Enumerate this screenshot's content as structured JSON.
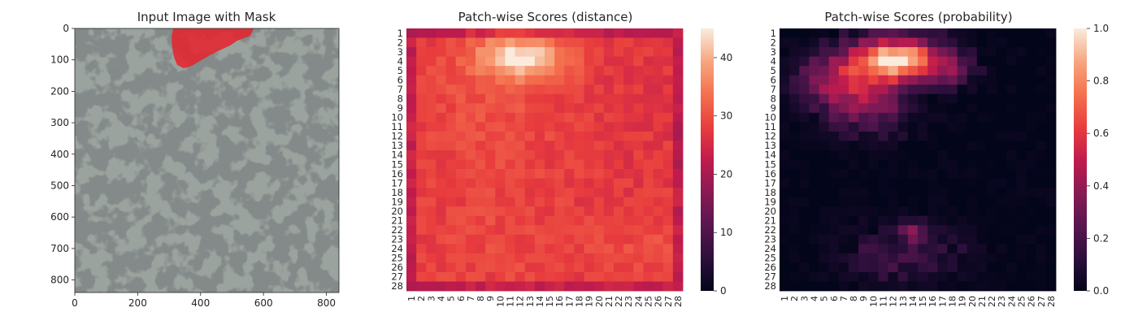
{
  "chart_data": [
    {
      "type": "image",
      "title": "Input Image with Mask",
      "xlim": [
        0,
        840
      ],
      "ylim": [
        840,
        0
      ],
      "xticks": [
        "0",
        "200",
        "400",
        "600",
        "800"
      ],
      "yticks": [
        "0",
        "100",
        "200",
        "300",
        "400",
        "500",
        "600",
        "700",
        "800"
      ],
      "mask_region": "red overlay at top center of image",
      "colors": {
        "background": "#9aa39e",
        "spots": "#3c4140",
        "mask": "#e8222c"
      }
    },
    {
      "type": "heatmap",
      "title": "Patch-wise Scores (distance)",
      "rows": 28,
      "cols": 28,
      "tick_labels": [
        "1",
        "2",
        "3",
        "4",
        "5",
        "6",
        "7",
        "8",
        "9",
        "10",
        "11",
        "12",
        "13",
        "14",
        "15",
        "16",
        "17",
        "18",
        "19",
        "20",
        "21",
        "22",
        "23",
        "24",
        "25",
        "26",
        "27",
        "28"
      ],
      "colorbar_ticks": [
        "0",
        "10",
        "20",
        "30",
        "40"
      ],
      "value_range": [
        0,
        45
      ],
      "approx_pattern": "values ~24-34 across grid; peak ~45 around rows 3-4, cols 10-12; border cells ~20-24"
    },
    {
      "type": "heatmap",
      "title": "Patch-wise Scores (probability)",
      "rows": 28,
      "cols": 28,
      "tick_labels": [
        "1",
        "2",
        "3",
        "4",
        "5",
        "6",
        "7",
        "8",
        "9",
        "10",
        "11",
        "12",
        "13",
        "14",
        "15",
        "16",
        "17",
        "18",
        "19",
        "20",
        "21",
        "22",
        "23",
        "24",
        "25",
        "26",
        "27",
        "28"
      ],
      "colorbar_ticks": [
        "0.0",
        "0.2",
        "0.4",
        "0.6",
        "0.8",
        "1.0"
      ],
      "value_range": [
        0,
        1
      ],
      "approx_pattern": "near 0 everywhere except rows 1-9, cols 3-19 (peak ~1.0 at rows 2-4, cols 9-15) and faint ~0.1-0.35 patches at rows 21-27, cols 6-17"
    }
  ]
}
